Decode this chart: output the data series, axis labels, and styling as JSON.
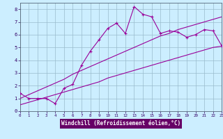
{
  "xlabel": "Windchill (Refroidissement éolien,°C)",
  "bg_color": "#cceeff",
  "line_color": "#990099",
  "grid_color": "#99bbcc",
  "x_data": [
    0,
    1,
    2,
    3,
    4,
    5,
    6,
    7,
    8,
    9,
    10,
    11,
    12,
    13,
    14,
    15,
    16,
    17,
    18,
    19,
    20,
    21,
    22,
    23
  ],
  "y_main": [
    1.4,
    1.0,
    1.0,
    1.0,
    0.6,
    1.8,
    2.1,
    3.6,
    4.7,
    5.6,
    6.5,
    6.9,
    6.1,
    8.2,
    7.6,
    7.4,
    6.1,
    6.3,
    6.2,
    5.8,
    6.0,
    6.4,
    6.3,
    5.1
  ],
  "y_upper": [
    1.0,
    1.3,
    1.6,
    1.9,
    2.2,
    2.5,
    2.9,
    3.2,
    3.5,
    3.8,
    4.1,
    4.4,
    4.7,
    5.0,
    5.3,
    5.6,
    5.9,
    6.1,
    6.4,
    6.6,
    6.8,
    7.0,
    7.2,
    7.4
  ],
  "y_lower": [
    0.5,
    0.7,
    0.9,
    1.1,
    1.3,
    1.5,
    1.7,
    1.9,
    2.1,
    2.3,
    2.6,
    2.8,
    3.0,
    3.2,
    3.4,
    3.6,
    3.8,
    4.0,
    4.2,
    4.4,
    4.6,
    4.8,
    5.0,
    5.1
  ],
  "xlim": [
    0,
    23
  ],
  "ylim": [
    0,
    8.5
  ],
  "xticks": [
    0,
    1,
    2,
    3,
    4,
    5,
    6,
    7,
    8,
    9,
    10,
    11,
    12,
    13,
    14,
    15,
    16,
    17,
    18,
    19,
    20,
    21,
    22,
    23
  ],
  "yticks": [
    0,
    1,
    2,
    3,
    4,
    5,
    6,
    7,
    8
  ]
}
